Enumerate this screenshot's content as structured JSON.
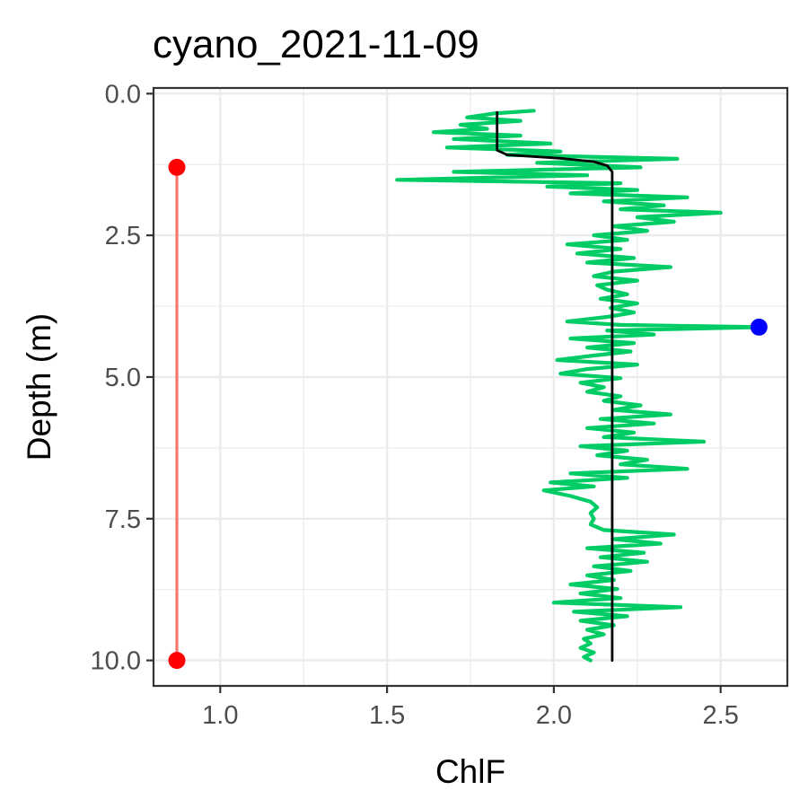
{
  "chart_data": {
    "type": "line",
    "title": "cyano_2021-11-09",
    "xlabel": "ChlF",
    "ylabel": "Depth (m)",
    "xlim": [
      0.8,
      2.7
    ],
    "ylim": [
      10.45,
      -0.1
    ],
    "y_reversed": true,
    "grid": true,
    "x_ticks": [
      {
        "value": 1.0,
        "label": "1.0"
      },
      {
        "value": 1.5,
        "label": "1.5"
      },
      {
        "value": 2.0,
        "label": "2.0"
      },
      {
        "value": 2.5,
        "label": "2.5"
      }
    ],
    "y_ticks": [
      {
        "value": 0.0,
        "label": "0.0"
      },
      {
        "value": 2.5,
        "label": "2.5"
      },
      {
        "value": 5.0,
        "label": "5.0"
      },
      {
        "value": 7.5,
        "label": "7.5"
      },
      {
        "value": 10.0,
        "label": "10.0"
      }
    ],
    "series": [
      {
        "color": "#00cc66",
        "style": "line",
        "points": [
          [
            1.94,
            0.3
          ],
          [
            1.82,
            0.35
          ],
          [
            1.74,
            0.42
          ],
          [
            1.9,
            0.48
          ],
          [
            1.72,
            0.55
          ],
          [
            1.8,
            0.62
          ],
          [
            1.64,
            0.68
          ],
          [
            1.9,
            0.74
          ],
          [
            1.7,
            0.8
          ],
          [
            1.99,
            0.88
          ],
          [
            1.68,
            0.95
          ],
          [
            2.02,
            1.02
          ],
          [
            1.86,
            1.08
          ],
          [
            2.37,
            1.15
          ],
          [
            1.95,
            1.22
          ],
          [
            2.26,
            1.3
          ],
          [
            1.7,
            1.38
          ],
          [
            2.1,
            1.44
          ],
          [
            1.53,
            1.52
          ],
          [
            2.2,
            1.58
          ],
          [
            1.98,
            1.64
          ],
          [
            2.25,
            1.7
          ],
          [
            2.05,
            1.76
          ],
          [
            2.4,
            1.83
          ],
          [
            2.15,
            1.9
          ],
          [
            2.33,
            1.97
          ],
          [
            2.2,
            2.04
          ],
          [
            2.5,
            2.1
          ],
          [
            2.25,
            2.18
          ],
          [
            2.36,
            2.26
          ],
          [
            2.18,
            2.34
          ],
          [
            2.28,
            2.42
          ],
          [
            2.12,
            2.5
          ],
          [
            2.22,
            2.58
          ],
          [
            2.04,
            2.66
          ],
          [
            2.2,
            2.74
          ],
          [
            2.07,
            2.82
          ],
          [
            2.24,
            2.9
          ],
          [
            2.1,
            2.98
          ],
          [
            2.35,
            3.06
          ],
          [
            2.18,
            3.14
          ],
          [
            2.12,
            3.22
          ],
          [
            2.25,
            3.3
          ],
          [
            2.13,
            3.38
          ],
          [
            2.16,
            3.46
          ],
          [
            2.22,
            3.54
          ],
          [
            2.14,
            3.62
          ],
          [
            2.25,
            3.7
          ],
          [
            2.17,
            3.78
          ],
          [
            2.24,
            3.86
          ],
          [
            2.16,
            3.94
          ],
          [
            2.04,
            4.02
          ],
          [
            2.2,
            4.08
          ],
          [
            2.62,
            4.12
          ],
          [
            2.16,
            4.18
          ],
          [
            2.3,
            4.25
          ],
          [
            2.05,
            4.32
          ],
          [
            2.24,
            4.4
          ],
          [
            2.1,
            4.48
          ],
          [
            2.23,
            4.55
          ],
          [
            2.12,
            4.62
          ],
          [
            2.01,
            4.7
          ],
          [
            2.25,
            4.78
          ],
          [
            2.1,
            4.86
          ],
          [
            2.02,
            4.94
          ],
          [
            2.2,
            5.02
          ],
          [
            2.08,
            5.1
          ],
          [
            2.15,
            5.18
          ],
          [
            2.1,
            5.26
          ],
          [
            2.2,
            5.34
          ],
          [
            2.15,
            5.42
          ],
          [
            2.26,
            5.5
          ],
          [
            2.18,
            5.58
          ],
          [
            2.35,
            5.66
          ],
          [
            2.14,
            5.74
          ],
          [
            2.3,
            5.82
          ],
          [
            2.1,
            5.9
          ],
          [
            2.24,
            5.98
          ],
          [
            2.15,
            6.06
          ],
          [
            2.45,
            6.14
          ],
          [
            2.08,
            6.22
          ],
          [
            2.22,
            6.3
          ],
          [
            2.13,
            6.38
          ],
          [
            2.28,
            6.46
          ],
          [
            2.2,
            6.54
          ],
          [
            2.4,
            6.62
          ],
          [
            2.05,
            6.7
          ],
          [
            2.22,
            6.78
          ],
          [
            1.99,
            6.86
          ],
          [
            2.12,
            6.93
          ],
          [
            1.97,
            7.0
          ],
          [
            2.05,
            7.1
          ],
          [
            2.11,
            7.2
          ],
          [
            2.13,
            7.3
          ],
          [
            2.11,
            7.4
          ],
          [
            2.12,
            7.5
          ],
          [
            2.11,
            7.6
          ],
          [
            2.15,
            7.7
          ],
          [
            2.36,
            7.78
          ],
          [
            2.18,
            7.86
          ],
          [
            2.32,
            7.94
          ],
          [
            2.1,
            8.02
          ],
          [
            2.27,
            8.1
          ],
          [
            2.14,
            8.18
          ],
          [
            2.28,
            8.26
          ],
          [
            2.12,
            8.34
          ],
          [
            2.23,
            8.42
          ],
          [
            2.1,
            8.5
          ],
          [
            2.18,
            8.58
          ],
          [
            2.05,
            8.66
          ],
          [
            2.19,
            8.74
          ],
          [
            2.08,
            8.82
          ],
          [
            2.2,
            8.9
          ],
          [
            2.0,
            8.98
          ],
          [
            2.38,
            9.06
          ],
          [
            2.06,
            9.14
          ],
          [
            2.22,
            9.22
          ],
          [
            2.08,
            9.3
          ],
          [
            2.18,
            9.38
          ],
          [
            2.1,
            9.46
          ],
          [
            2.15,
            9.54
          ],
          [
            2.09,
            9.62
          ],
          [
            2.11,
            9.7
          ],
          [
            2.08,
            9.78
          ],
          [
            2.12,
            9.86
          ],
          [
            2.09,
            9.94
          ],
          [
            2.11,
            10.0
          ]
        ]
      },
      {
        "color": "#000000",
        "style": "line",
        "points": [
          [
            1.83,
            0.33
          ],
          [
            1.83,
            1.0
          ],
          [
            1.86,
            1.08
          ],
          [
            2.02,
            1.14
          ],
          [
            2.12,
            1.2
          ],
          [
            2.16,
            1.27
          ],
          [
            2.175,
            1.38
          ],
          [
            2.175,
            10.0
          ]
        ]
      },
      {
        "color": "#f8766d",
        "style": "line-markers",
        "marker_color": "#ff0000",
        "points": [
          [
            0.87,
            1.3
          ],
          [
            0.87,
            10.0
          ]
        ]
      },
      {
        "color": "#0000ff",
        "style": "marker",
        "points": [
          [
            2.615,
            4.12
          ]
        ]
      }
    ]
  }
}
